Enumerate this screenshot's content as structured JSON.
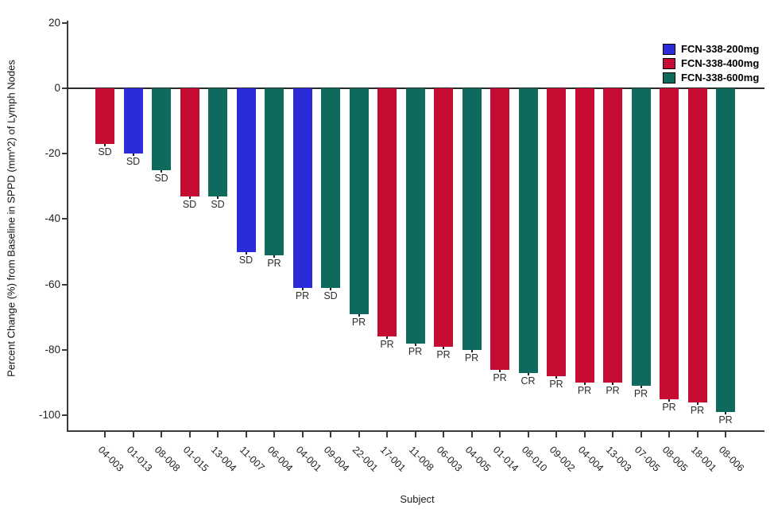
{
  "chart_data": {
    "type": "bar",
    "variant": "waterfall",
    "title": "",
    "xlabel": "Subject",
    "ylabel": "Percent Change (%) from Baseline in SPPD (mm^2) of Lymph Nodes",
    "ylim": [
      -105,
      20
    ],
    "yticks": [
      "20",
      "0",
      "-20",
      "-40",
      "-60",
      "-80",
      "-100"
    ],
    "ytick_values": [
      20,
      0,
      -20,
      -40,
      -60,
      -80,
      -100
    ],
    "grid": false,
    "legend_position": "top-right",
    "colors": {
      "axis": "#3a3a3a",
      "blue_200mg": "#2b2bd9",
      "red_400mg": "#c60c33",
      "teal_600mg": "#0e6a5c"
    },
    "legend": [
      {
        "label": "FCN-338-200mg",
        "color": "#2b2bd9"
      },
      {
        "label": "FCN-338-400mg",
        "color": "#c60c33"
      },
      {
        "label": "FCN-338-600mg",
        "color": "#0e6a5c"
      }
    ],
    "subjects": [
      {
        "id": "04-003",
        "value": -17,
        "response": "SD",
        "group": "FCN-338-400mg"
      },
      {
        "id": "01-013",
        "value": -20,
        "response": "SD",
        "group": "FCN-338-200mg"
      },
      {
        "id": "08-008",
        "value": -25,
        "response": "SD",
        "group": "FCN-338-600mg"
      },
      {
        "id": "01-015",
        "value": -33,
        "response": "SD",
        "group": "FCN-338-400mg"
      },
      {
        "id": "13-004",
        "value": -33,
        "response": "SD",
        "group": "FCN-338-600mg"
      },
      {
        "id": "11-007",
        "value": -50,
        "response": "SD",
        "group": "FCN-338-200mg"
      },
      {
        "id": "06-004",
        "value": -51,
        "response": "PR",
        "group": "FCN-338-600mg"
      },
      {
        "id": "04-001",
        "value": -61,
        "response": "PR",
        "group": "FCN-338-200mg"
      },
      {
        "id": "09-004",
        "value": -61,
        "response": "SD",
        "group": "FCN-338-600mg"
      },
      {
        "id": "22-001",
        "value": -69,
        "response": "PR",
        "group": "FCN-338-600mg"
      },
      {
        "id": "17-001",
        "value": -76,
        "response": "PR",
        "group": "FCN-338-400mg"
      },
      {
        "id": "11-008",
        "value": -78,
        "response": "PR",
        "group": "FCN-338-600mg"
      },
      {
        "id": "06-003",
        "value": -79,
        "response": "PR",
        "group": "FCN-338-400mg"
      },
      {
        "id": "04-005",
        "value": -80,
        "response": "PR",
        "group": "FCN-338-600mg"
      },
      {
        "id": "01-014",
        "value": -86,
        "response": "PR",
        "group": "FCN-338-400mg"
      },
      {
        "id": "08-010",
        "value": -87,
        "response": "CR",
        "group": "FCN-338-600mg"
      },
      {
        "id": "09-002",
        "value": -88,
        "response": "PR",
        "group": "FCN-338-400mg"
      },
      {
        "id": "04-004",
        "value": -90,
        "response": "PR",
        "group": "FCN-338-400mg"
      },
      {
        "id": "13-003",
        "value": -90,
        "response": "PR",
        "group": "FCN-338-400mg"
      },
      {
        "id": "07-005",
        "value": -91,
        "response": "PR",
        "group": "FCN-338-600mg"
      },
      {
        "id": "08-005",
        "value": -95,
        "response": "PR",
        "group": "FCN-338-400mg"
      },
      {
        "id": "18-001",
        "value": -96,
        "response": "PR",
        "group": "FCN-338-400mg"
      },
      {
        "id": "08-006",
        "value": -99,
        "response": "PR",
        "group": "FCN-338-600mg"
      }
    ]
  }
}
